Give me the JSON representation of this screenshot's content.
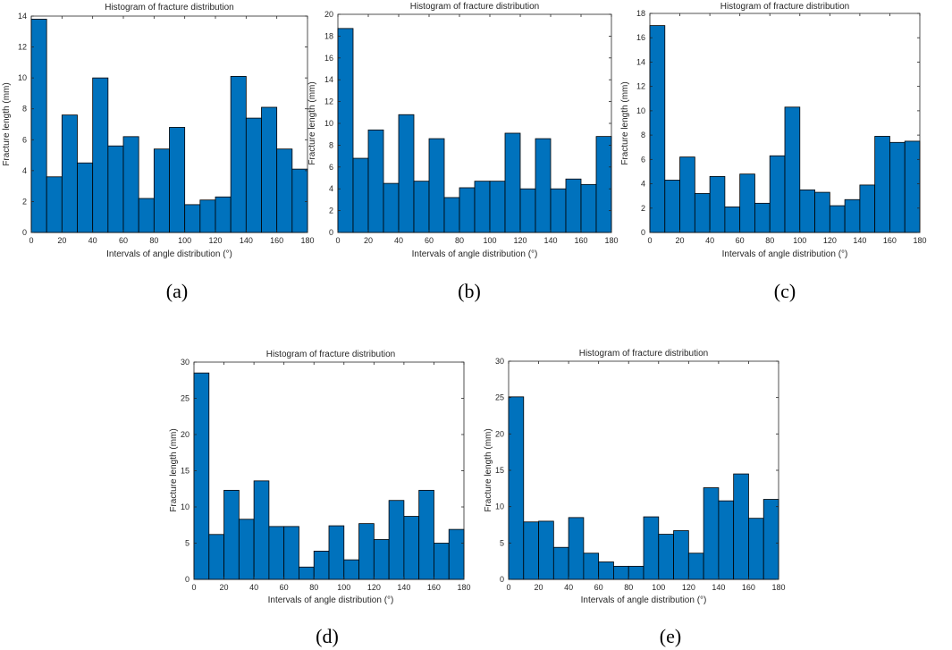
{
  "colors": {
    "bar": "#0072BD",
    "axis": "#262626",
    "background": "#ffffff"
  },
  "chart_data": [
    {
      "type": "bar",
      "panel_label": "(a)",
      "title": "Histogram of fracture distribution",
      "xlabel": "Intervals of angle distribution (°)",
      "ylabel": "Fracture length (mm)",
      "xlim": [
        0,
        180
      ],
      "ylim": [
        0,
        14
      ],
      "xticks": [
        0,
        20,
        40,
        60,
        80,
        100,
        120,
        140,
        160,
        180
      ],
      "yticks": [
        0,
        2,
        4,
        6,
        8,
        10,
        12,
        14
      ],
      "bin_width": 10,
      "values": [
        13.8,
        3.6,
        7.6,
        4.5,
        10.0,
        5.6,
        6.2,
        2.2,
        5.4,
        6.8,
        1.8,
        2.1,
        2.3,
        10.1,
        7.4,
        8.1,
        5.4,
        4.1
      ]
    },
    {
      "type": "bar",
      "panel_label": "(b)",
      "title": "Histogram of fracture distribution",
      "xlabel": "Intervals of angle distribution (°)",
      "ylabel": "Fracture length (mm)",
      "xlim": [
        0,
        180
      ],
      "ylim": [
        0,
        20
      ],
      "xticks": [
        0,
        20,
        40,
        60,
        80,
        100,
        120,
        140,
        160,
        180
      ],
      "yticks": [
        0,
        2,
        4,
        6,
        8,
        10,
        12,
        14,
        16,
        18,
        20
      ],
      "bin_width": 10,
      "values": [
        18.7,
        6.8,
        9.4,
        4.5,
        10.8,
        4.7,
        8.6,
        3.2,
        4.1,
        4.7,
        4.7,
        9.1,
        4.0,
        8.6,
        4.0,
        4.9,
        4.4,
        8.8
      ]
    },
    {
      "type": "bar",
      "panel_label": "(c)",
      "title": "Histogram of fracture distribution",
      "xlabel": "Intervals of angle distribution (°)",
      "ylabel": "Fracture length (mm)",
      "xlim": [
        0,
        180
      ],
      "ylim": [
        0,
        18
      ],
      "xticks": [
        0,
        20,
        40,
        60,
        80,
        100,
        120,
        140,
        160,
        180
      ],
      "yticks": [
        0,
        2,
        4,
        6,
        8,
        10,
        12,
        14,
        16,
        18
      ],
      "bin_width": 10,
      "values": [
        17.0,
        4.3,
        6.2,
        3.2,
        4.6,
        2.1,
        4.8,
        2.4,
        6.3,
        10.3,
        3.5,
        3.3,
        2.2,
        2.7,
        3.9,
        7.9,
        7.4,
        7.5
      ]
    },
    {
      "type": "bar",
      "panel_label": "(d)",
      "title": "Histogram of fracture distribution",
      "xlabel": "Intervals of angle distribution (°)",
      "ylabel": "Fracture length (mm)",
      "xlim": [
        0,
        180
      ],
      "ylim": [
        0,
        30
      ],
      "xticks": [
        0,
        20,
        40,
        60,
        80,
        100,
        120,
        140,
        160,
        180
      ],
      "yticks": [
        0,
        5,
        10,
        15,
        20,
        25,
        30
      ],
      "bin_width": 10,
      "values": [
        28.5,
        6.2,
        12.3,
        8.3,
        13.6,
        7.3,
        7.3,
        1.7,
        3.9,
        7.4,
        2.7,
        7.7,
        5.5,
        10.9,
        8.7,
        12.3,
        5.0,
        6.9
      ]
    },
    {
      "type": "bar",
      "panel_label": "(e)",
      "title": "Histogram of fracture distribution",
      "xlabel": "Intervals of angle distribution (°)",
      "ylabel": "Fracture length (mm)",
      "xlim": [
        0,
        180
      ],
      "ylim": [
        0,
        30
      ],
      "xticks": [
        0,
        20,
        40,
        60,
        80,
        100,
        120,
        140,
        160,
        180
      ],
      "yticks": [
        0,
        5,
        10,
        15,
        20,
        25,
        30
      ],
      "bin_width": 10,
      "values": [
        25.1,
        7.9,
        8.0,
        4.4,
        8.5,
        3.6,
        2.4,
        1.8,
        1.8,
        8.6,
        6.2,
        6.7,
        3.6,
        12.6,
        10.8,
        14.5,
        8.4,
        11.0
      ]
    }
  ]
}
